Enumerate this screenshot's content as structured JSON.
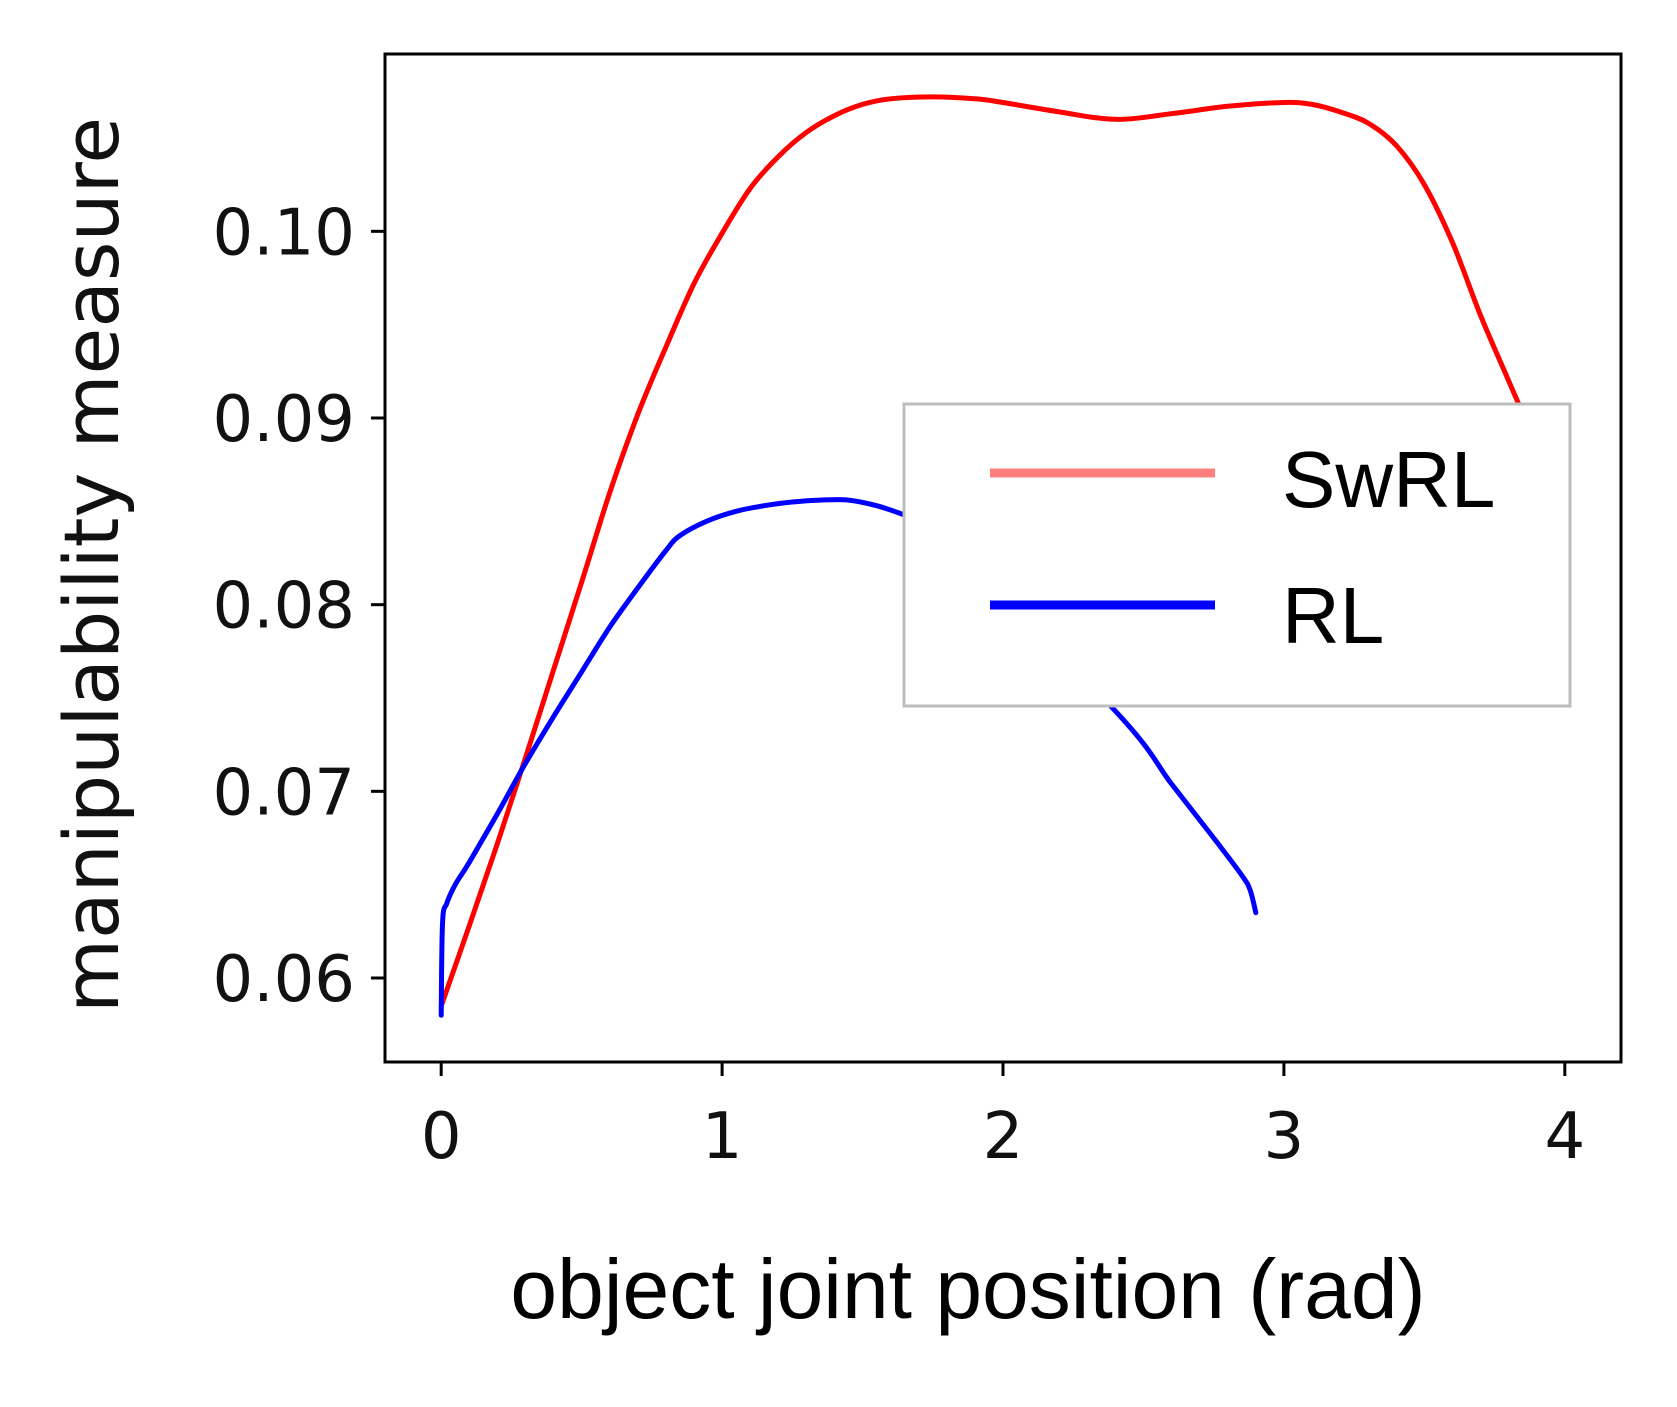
{
  "chart_data": {
    "type": "line",
    "title": "",
    "xlabel": "object joint position (rad)",
    "ylabel": "manipulability measure",
    "xlim": [
      -0.2,
      4.2
    ],
    "ylim": [
      0.0555,
      0.1095
    ],
    "xticks": [
      0,
      1,
      2,
      3,
      4
    ],
    "xtick_labels": [
      "0",
      "1",
      "2",
      "3",
      "4"
    ],
    "yticks": [
      0.06,
      0.07,
      0.08,
      0.09,
      0.1
    ],
    "ytick_labels": [
      "0.06",
      "0.07",
      "0.08",
      "0.09",
      "0.10"
    ],
    "grid": false,
    "legend_position": "center-right",
    "series": [
      {
        "name": "SwRL",
        "color": "#ff0000",
        "legend_color": "#ff7f7f",
        "x": [
          0.0,
          0.1,
          0.2,
          0.3,
          0.4,
          0.5,
          0.6,
          0.7,
          0.8,
          0.9,
          1.0,
          1.1,
          1.2,
          1.3,
          1.4,
          1.5,
          1.6,
          1.75,
          1.9,
          2.0,
          2.2,
          2.4,
          2.6,
          2.8,
          3.0,
          3.1,
          3.2,
          3.3,
          3.4,
          3.5,
          3.6,
          3.7,
          3.8,
          3.88
        ],
        "y": [
          0.0585,
          0.0628,
          0.0672,
          0.0718,
          0.0765,
          0.0812,
          0.086,
          0.0902,
          0.0938,
          0.0972,
          0.0999,
          0.1023,
          0.104,
          0.1053,
          0.1062,
          0.1068,
          0.1071,
          0.1072,
          0.1071,
          0.1069,
          0.1064,
          0.106,
          0.1063,
          0.1067,
          0.1069,
          0.1068,
          0.1064,
          0.1058,
          0.1046,
          0.1025,
          0.0994,
          0.0955,
          0.092,
          0.0892
        ]
      },
      {
        "name": "RL",
        "color": "#0000ff",
        "legend_color": "#0000ff",
        "x": [
          0.0,
          0.005,
          0.02,
          0.05,
          0.1,
          0.2,
          0.3,
          0.4,
          0.5,
          0.6,
          0.7,
          0.8,
          0.85,
          0.95,
          1.05,
          1.15,
          1.25,
          1.35,
          1.45,
          1.55,
          1.65,
          1.75,
          2.4,
          2.6,
          2.75,
          2.85,
          2.88,
          2.9
        ],
        "y": [
          0.058,
          0.063,
          0.064,
          0.065,
          0.0662,
          0.0688,
          0.0715,
          0.074,
          0.0764,
          0.0788,
          0.0809,
          0.0829,
          0.0837,
          0.0845,
          0.085,
          0.0853,
          0.0855,
          0.0856,
          0.0856,
          0.0853,
          0.0848,
          0.0842,
          0.0743,
          0.0704,
          0.0675,
          0.0655,
          0.0647,
          0.0635
        ]
      }
    ]
  }
}
